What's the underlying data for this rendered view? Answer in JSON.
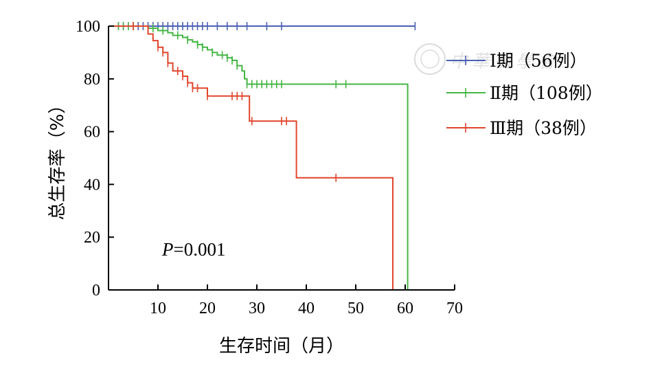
{
  "chart_data": {
    "type": "line",
    "subtype": "kaplan-meier",
    "xlabel": "生存时间（月）",
    "ylabel": "总生存率（%）",
    "xlim": [
      0,
      70
    ],
    "ylim": [
      0,
      100
    ],
    "xticks": [
      10,
      20,
      30,
      40,
      50,
      60,
      70
    ],
    "yticks": [
      0,
      20,
      40,
      60,
      80,
      100
    ],
    "grid": false,
    "legend_position": "top-right",
    "annotation": {
      "p_label": "P",
      "p_value": "=0.001"
    },
    "series": [
      {
        "name": "Ⅰ期（56例）",
        "color": "#4a5fb5",
        "steps": [
          [
            0,
            100
          ],
          [
            62,
            100
          ]
        ],
        "censors": [
          2,
          3,
          4,
          5,
          6,
          7,
          8,
          9,
          10,
          11,
          12,
          13,
          14,
          15,
          16,
          17,
          18,
          19,
          20,
          22,
          24,
          26,
          28,
          32,
          35,
          62
        ]
      },
      {
        "name": "Ⅱ期（108例）",
        "color": "#44b544",
        "steps": [
          [
            0,
            100
          ],
          [
            8,
            99.2
          ],
          [
            10,
            98.3
          ],
          [
            12,
            97.5
          ],
          [
            13,
            96.5
          ],
          [
            15,
            95.7
          ],
          [
            16,
            94.8
          ],
          [
            17,
            94
          ],
          [
            18,
            93
          ],
          [
            19,
            92
          ],
          [
            20,
            91
          ],
          [
            21,
            90
          ],
          [
            22,
            89
          ],
          [
            24,
            88
          ],
          [
            25,
            87
          ],
          [
            26,
            85
          ],
          [
            27,
            83
          ],
          [
            27.5,
            80
          ],
          [
            28,
            78
          ],
          [
            60.5,
            78
          ],
          [
            60.5,
            0
          ]
        ],
        "censors": [
          2,
          3,
          4,
          5,
          9,
          11,
          14,
          16,
          18,
          19,
          21,
          23,
          24,
          25,
          26,
          28,
          29,
          30,
          31,
          32,
          33,
          34,
          35,
          46,
          48
        ]
      },
      {
        "name": "Ⅲ期（38例）",
        "color": "#e0452b",
        "steps": [
          [
            0,
            100
          ],
          [
            8,
            97
          ],
          [
            9,
            94.5
          ],
          [
            10,
            92
          ],
          [
            11,
            90
          ],
          [
            12,
            86
          ],
          [
            13,
            83
          ],
          [
            15,
            81
          ],
          [
            16,
            78.5
          ],
          [
            17,
            76.5
          ],
          [
            20,
            73.5
          ],
          [
            28.5,
            73.5
          ],
          [
            28.5,
            64
          ],
          [
            38,
            64
          ],
          [
            38,
            42.5
          ],
          [
            57.5,
            42.5
          ],
          [
            57.5,
            0
          ]
        ],
        "censors": [
          5,
          10,
          11,
          12,
          14,
          15,
          16,
          17,
          18,
          20,
          25,
          26,
          27,
          29,
          35,
          36,
          46
        ]
      }
    ]
  },
  "watermark": {
    "text": "中華醫學會"
  }
}
